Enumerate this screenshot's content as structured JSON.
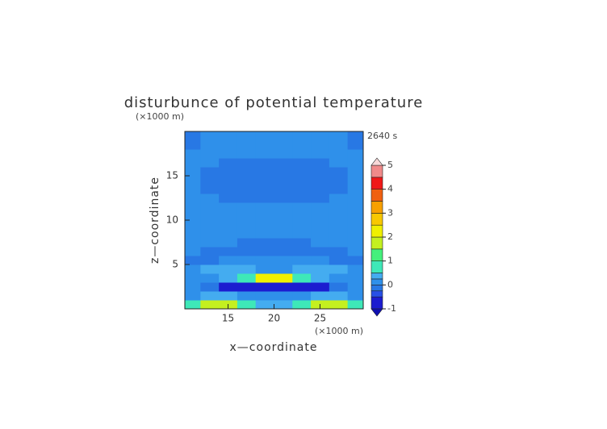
{
  "chart_data": {
    "type": "heatmap",
    "title": "disturbunce of potential temperature",
    "time_label": "2640 s",
    "x_label": "x—coordinate",
    "y_label": "z—coordinate",
    "x_unit": "(×1000 m)",
    "y_unit": "(×1000 m)",
    "x": [
      11,
      13,
      15,
      17,
      19,
      21,
      23,
      25,
      27,
      29
    ],
    "z": [
      0.5,
      1.5,
      2.5,
      3.5,
      4.5,
      5.5,
      6.5,
      7.5,
      8.5,
      9.5,
      10.5,
      11.5,
      12.5,
      13.5,
      14.5,
      15.5,
      16.5,
      17.5,
      18.5,
      19.5
    ],
    "values": [
      [
        0.6,
        1.6,
        1.6,
        0.6,
        0.3,
        0.3,
        0.6,
        1.6,
        1.6,
        0.6
      ],
      [
        0.1,
        0.3,
        0.3,
        0.1,
        0.1,
        0.1,
        0.1,
        0.3,
        0.3,
        0.1
      ],
      [
        0.1,
        -0.1,
        -0.7,
        -0.7,
        -0.7,
        -0.7,
        -0.7,
        -0.7,
        -0.1,
        0.1
      ],
      [
        0.1,
        0.1,
        0.3,
        0.6,
        2.2,
        2.2,
        0.6,
        0.3,
        0.1,
        0.1
      ],
      [
        0.1,
        0.3,
        0.3,
        0.3,
        0.1,
        0.1,
        0.3,
        0.3,
        0.3,
        0.1
      ],
      [
        -0.1,
        -0.1,
        0.1,
        0.1,
        0.1,
        0.1,
        0.1,
        0.1,
        -0.1,
        -0.1
      ],
      [
        0.1,
        -0.1,
        -0.1,
        -0.1,
        -0.1,
        -0.1,
        -0.1,
        -0.1,
        -0.1,
        0.1
      ],
      [
        0.1,
        0.1,
        0.1,
        -0.1,
        -0.1,
        -0.1,
        -0.1,
        0.1,
        0.1,
        0.1
      ],
      [
        0.1,
        0.1,
        0.1,
        0.1,
        0.1,
        0.1,
        0.1,
        0.1,
        0.1,
        0.1
      ],
      [
        0.1,
        0.1,
        0.1,
        0.1,
        0.1,
        0.1,
        0.1,
        0.1,
        0.1,
        0.1
      ],
      [
        0.1,
        0.1,
        0.1,
        0.1,
        0.1,
        0.1,
        0.1,
        0.1,
        0.1,
        0.1
      ],
      [
        0.1,
        0.1,
        0.1,
        0.1,
        0.1,
        0.1,
        0.1,
        0.1,
        0.1,
        0.1
      ],
      [
        0.1,
        0.1,
        -0.1,
        -0.1,
        -0.1,
        -0.1,
        -0.1,
        -0.1,
        0.1,
        0.1
      ],
      [
        0.1,
        -0.1,
        -0.1,
        -0.1,
        -0.1,
        -0.1,
        -0.1,
        -0.1,
        -0.1,
        0.1
      ],
      [
        0.1,
        -0.1,
        -0.1,
        -0.1,
        -0.1,
        -0.1,
        -0.1,
        -0.1,
        -0.1,
        0.1
      ],
      [
        0.1,
        -0.1,
        -0.1,
        -0.1,
        -0.1,
        -0.1,
        -0.1,
        -0.1,
        -0.1,
        0.1
      ],
      [
        0.1,
        0.1,
        -0.1,
        -0.1,
        -0.1,
        -0.1,
        -0.1,
        -0.1,
        0.1,
        0.1
      ],
      [
        0.1,
        0.1,
        0.1,
        0.1,
        0.1,
        0.1,
        0.1,
        0.1,
        0.1,
        0.1
      ],
      [
        -0.1,
        0.1,
        0.1,
        0.1,
        0.1,
        0.1,
        0.1,
        0.1,
        0.1,
        -0.1
      ],
      [
        -0.1,
        0.1,
        0.1,
        0.1,
        0.1,
        0.1,
        0.1,
        0.1,
        0.1,
        -0.1
      ]
    ],
    "levels": [
      -1,
      -0.5,
      -0.25,
      0,
      0.25,
      0.5,
      1,
      1.5,
      2,
      2.5,
      3,
      3.5,
      4,
      4.5,
      5
    ],
    "colors": [
      "#1c1cd0",
      "#2850e6",
      "#2878e4",
      "#2f90ea",
      "#44acf0",
      "#3ee8b8",
      "#44f07c",
      "#c4f020",
      "#f0f000",
      "#f8c800",
      "#f8a000",
      "#f06010",
      "#f01818",
      "#f08a8a"
    ],
    "under_color": "#1010b0",
    "over_color": "#f8d8d8",
    "xlim": [
      10.3,
      29.7
    ],
    "ylim": [
      0,
      20
    ],
    "xticks": [
      15,
      20,
      25
    ],
    "yticks": [
      5,
      10,
      15
    ],
    "colorbar_ticks": [
      -1,
      0,
      1,
      2,
      3,
      4,
      5
    ]
  }
}
